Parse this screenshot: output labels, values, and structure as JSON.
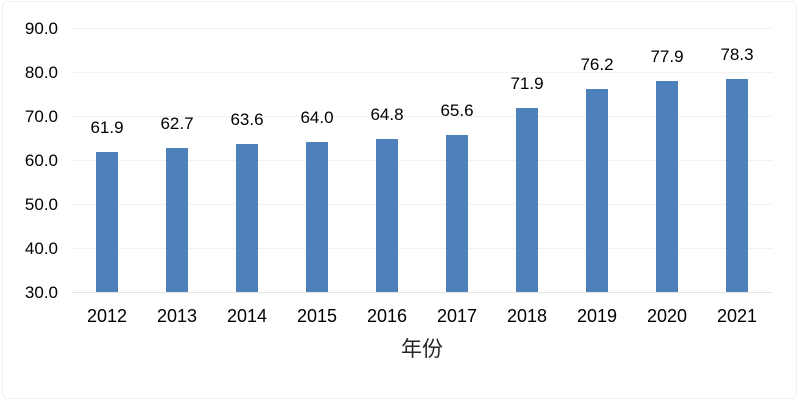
{
  "chart_data": {
    "type": "bar",
    "title": "",
    "xlabel": "年份",
    "ylabel": "",
    "categories": [
      "2012",
      "2013",
      "2014",
      "2015",
      "2016",
      "2017",
      "2018",
      "2019",
      "2020",
      "2021"
    ],
    "values": [
      61.9,
      62.7,
      63.6,
      64.0,
      64.8,
      65.6,
      71.9,
      76.2,
      77.9,
      78.3
    ],
    "value_labels": [
      "61.9",
      "62.7",
      "63.6",
      "64.0",
      "64.8",
      "65.6",
      "71.9",
      "76.2",
      "77.9",
      "78.3"
    ],
    "ylim": [
      30,
      90
    ],
    "ytick_step": 10,
    "ytick_labels": [
      "90.0",
      "80.0",
      "70.0",
      "60.0",
      "50.0",
      "40.0",
      "30.0"
    ],
    "grid": true,
    "legend": false,
    "colors": {
      "bar": "#4e80bc",
      "gridline": "#f2f2f2",
      "axis_line": "#e3e3e3",
      "text": "#000000",
      "chart_border": "#efefef",
      "background": "#ffffff"
    }
  }
}
